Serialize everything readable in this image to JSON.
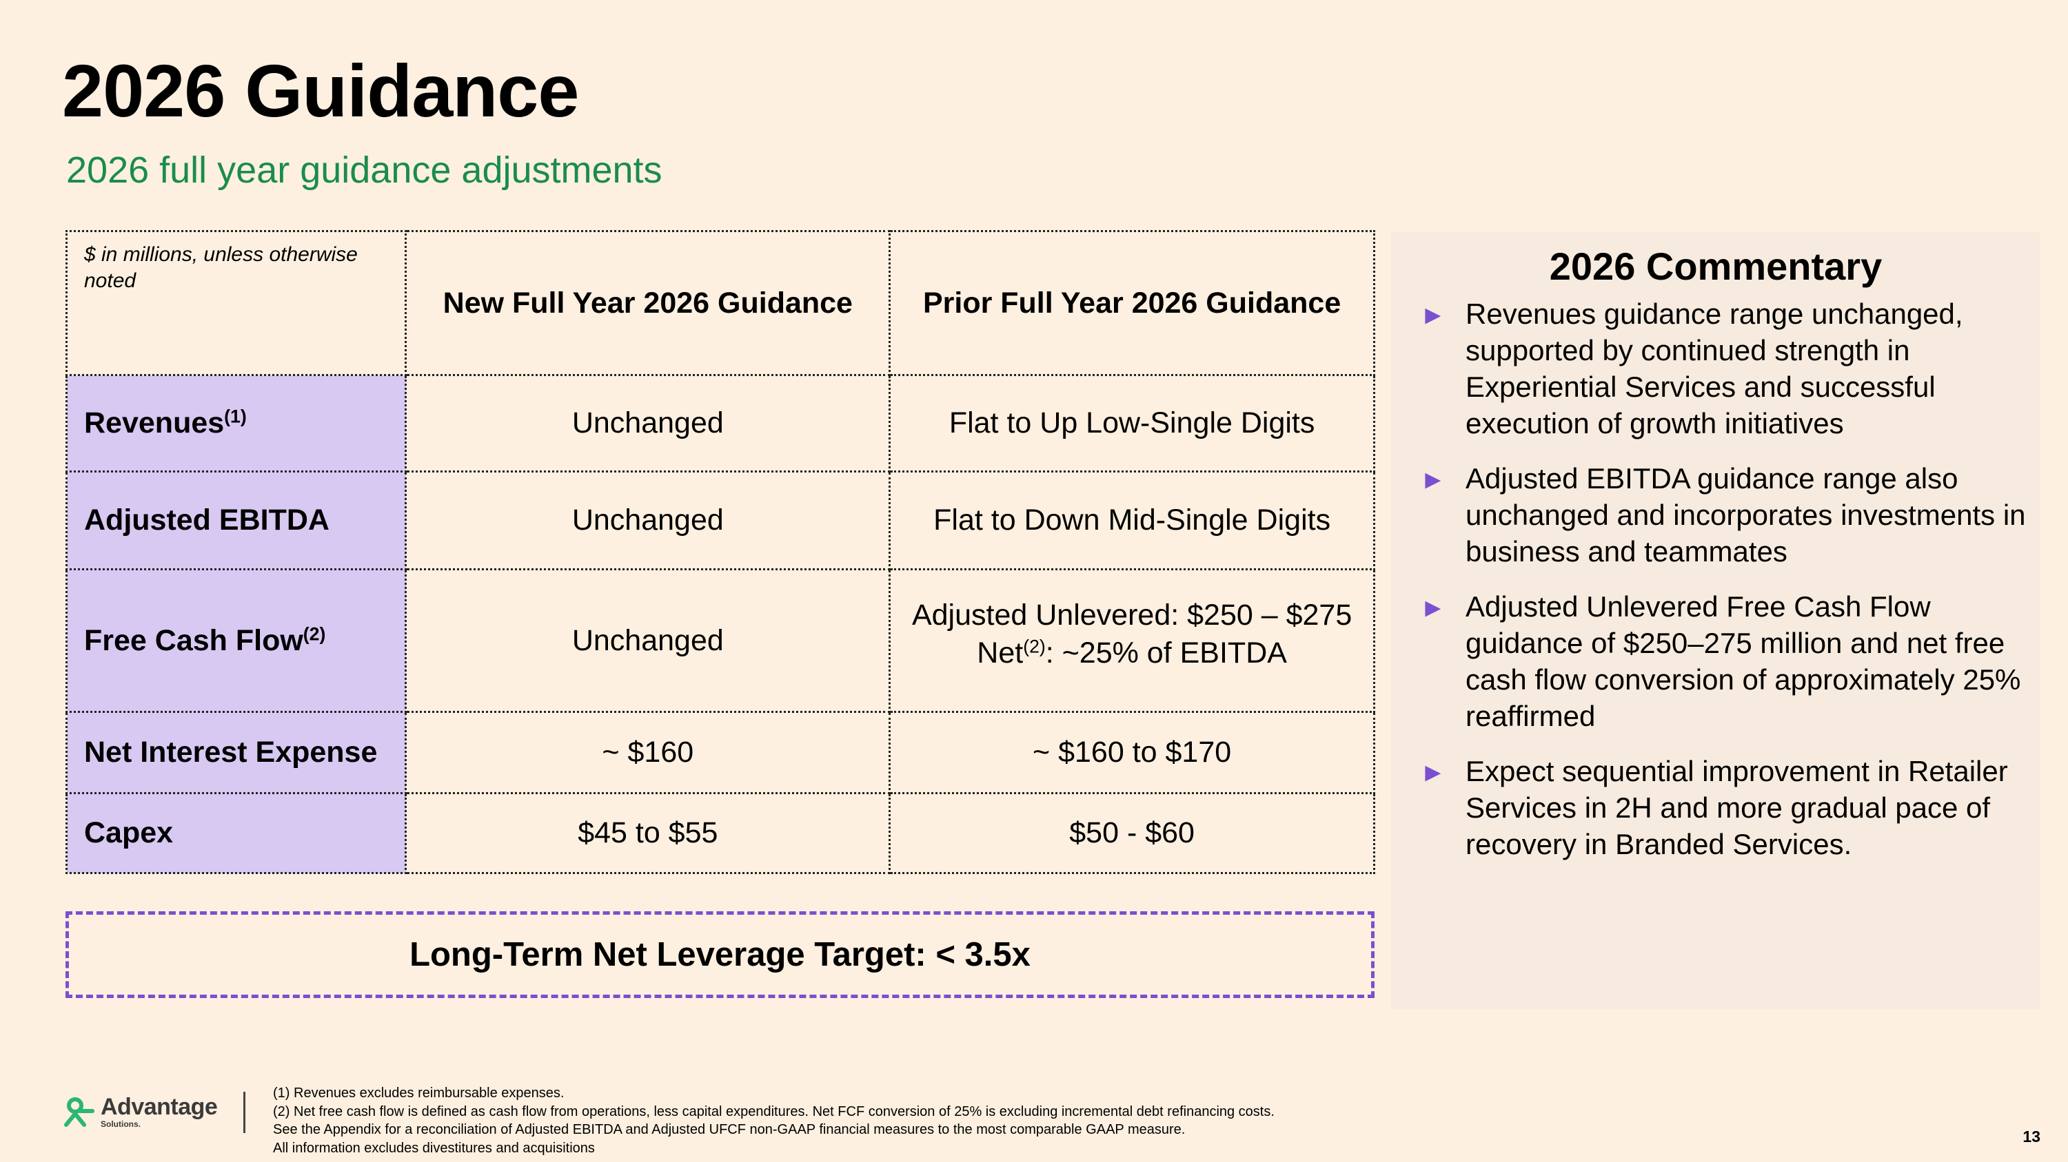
{
  "header": {
    "title": "2026 Guidance",
    "subtitle": "2026 full year guidance adjustments"
  },
  "table": {
    "corner_note": "$ in millions, unless otherwise noted",
    "col_new": "New Full Year 2026 Guidance",
    "col_prior": "Prior Full Year 2026 Guidance",
    "rows": [
      {
        "label": "Revenues",
        "footnote": "(1)",
        "new": "Unchanged",
        "prior": "Flat to Up Low-Single Digits"
      },
      {
        "label": "Adjusted EBITDA",
        "footnote": "",
        "new": "Unchanged",
        "prior": "Flat to Down Mid-Single Digits"
      },
      {
        "label": "Free Cash Flow",
        "footnote": "(2)",
        "new": "Unchanged",
        "prior_line1": "Adjusted Unlevered: $250 – $275",
        "prior_line2_pre": "Net",
        "prior_line2_sup": "(2)",
        "prior_line2_post": ": ~25% of EBITDA"
      },
      {
        "label": "Net Interest Expense",
        "footnote": "",
        "new": "~ $160",
        "prior": "~ $160 to $170"
      },
      {
        "label": "Capex",
        "footnote": "",
        "new": "$45 to $55",
        "prior": "$50 - $60"
      }
    ]
  },
  "target": "Long-Term Net Leverage Target: < 3.5x",
  "commentary": {
    "title": "2026 Commentary",
    "bullets": [
      "Revenues guidance range unchanged, supported by continued strength in Experiential Services and successful execution of growth initiatives",
      "Adjusted EBITDA guidance range also unchanged and incorporates investments in business and teammates",
      "Adjusted Unlevered Free Cash Flow guidance of $250–275 million and net free cash flow conversion of approximately 25% reaffirmed",
      "Expect sequential improvement in Retailer Services in 2H and more gradual pace of recovery in Branded Services."
    ],
    "bullet_icon": "triangle-right-icon",
    "accent_color": "#7b4fd0"
  },
  "logo": {
    "name": "Advantage",
    "sub": "Solutions.",
    "color": "#2bb673"
  },
  "footnotes": [
    "(1) Revenues excludes reimbursable expenses.",
    "(2) Net free cash flow is defined as cash flow from operations, less capital expenditures. Net FCF conversion of 25% is excluding incremental debt refinancing costs.",
    "See the Appendix for a reconciliation of Adjusted EBITDA and Adjusted UFCF non-GAAP financial measures to the most comparable GAAP measure.",
    "All information excludes divestitures and acquisitions"
  ],
  "page_number": "13",
  "colors": {
    "background": "#fdf0e0",
    "label_fill": "#d8c9f3",
    "subtitle": "#1b8c4a",
    "commentary_bg": "#f6ebde"
  }
}
